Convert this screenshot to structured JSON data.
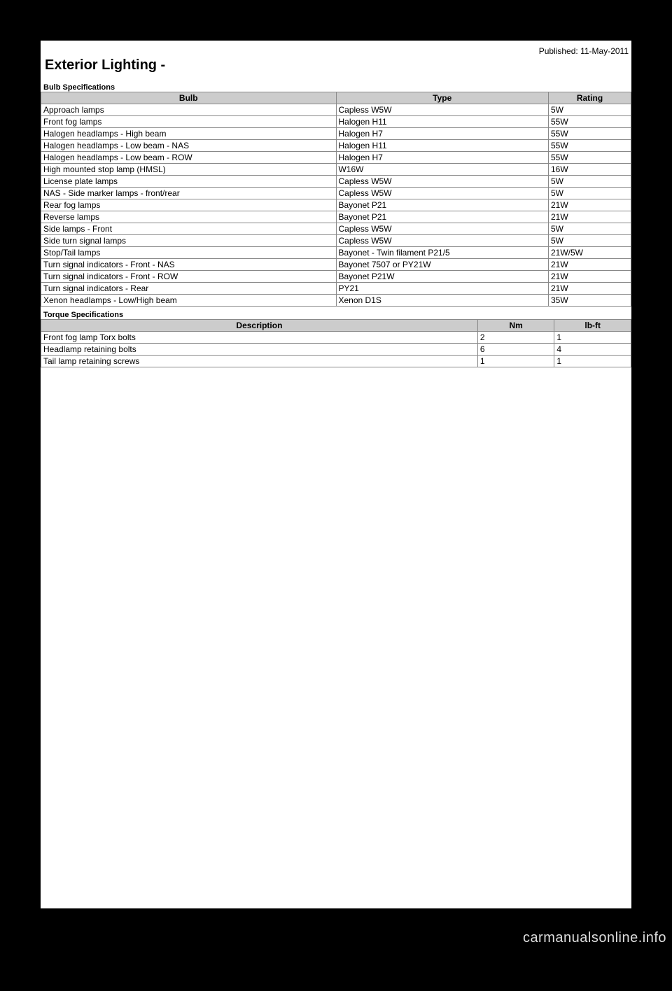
{
  "meta": {
    "published": "Published: 11-May-2011",
    "title": "Exterior Lighting -",
    "watermark": "carmanualsonline.info"
  },
  "bulb_section": {
    "label": "Bulb Specifications",
    "col_widths": [
      "50%",
      "36%",
      "14%"
    ],
    "columns": [
      "Bulb",
      "Type",
      "Rating"
    ],
    "rows": [
      [
        "Approach lamps",
        "Capless W5W",
        "5W"
      ],
      [
        "Front fog lamps",
        "Halogen H11",
        "55W"
      ],
      [
        "Halogen headlamps - High beam",
        "Halogen H7",
        "55W"
      ],
      [
        "Halogen headlamps - Low beam - NAS",
        "Halogen H11",
        "55W"
      ],
      [
        "Halogen headlamps - Low beam - ROW",
        "Halogen H7",
        "55W"
      ],
      [
        "High mounted stop lamp (HMSL)",
        "W16W",
        "16W"
      ],
      [
        "License plate lamps",
        "Capless W5W",
        "5W"
      ],
      [
        "NAS - Side marker lamps - front/rear",
        "Capless W5W",
        "5W"
      ],
      [
        "Rear fog lamps",
        "Bayonet P21",
        "21W"
      ],
      [
        "Reverse lamps",
        "Bayonet P21",
        "21W"
      ],
      [
        "Side lamps - Front",
        "Capless W5W",
        "5W"
      ],
      [
        "Side turn signal lamps",
        "Capless W5W",
        "5W"
      ],
      [
        "Stop/Tail lamps",
        "Bayonet - Twin filament P21/5",
        "21W/5W"
      ],
      [
        "Turn signal indicators - Front - NAS",
        "Bayonet 7507 or PY21W",
        "21W"
      ],
      [
        "Turn signal indicators - Front - ROW",
        "Bayonet P21W",
        "21W"
      ],
      [
        "Turn signal indicators - Rear",
        "PY21",
        "21W"
      ],
      [
        "Xenon headlamps - Low/High beam",
        "Xenon D1S",
        "35W"
      ]
    ]
  },
  "torque_section": {
    "label": "Torque Specifications",
    "col_widths": [
      "74%",
      "13%",
      "13%"
    ],
    "columns": [
      "Description",
      "Nm",
      "lb-ft"
    ],
    "rows": [
      [
        "Front fog lamp Torx bolts",
        "2",
        "1"
      ],
      [
        "Headlamp retaining bolts",
        "6",
        "4"
      ],
      [
        "Tail lamp retaining screws",
        "1",
        "1"
      ]
    ]
  }
}
